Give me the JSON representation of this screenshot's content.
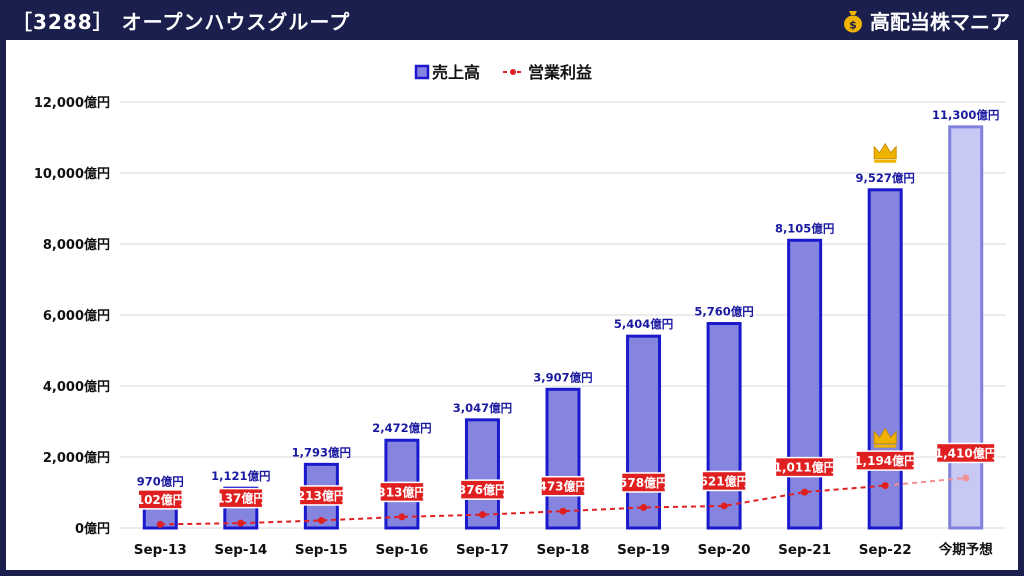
{
  "header": {
    "title": "［3288］ オープンハウスグループ",
    "brand": "高配当株マニア"
  },
  "chart_data": {
    "type": "bar",
    "categories": [
      "Sep-13",
      "Sep-14",
      "Sep-15",
      "Sep-16",
      "Sep-17",
      "Sep-18",
      "Sep-19",
      "Sep-20",
      "Sep-21",
      "Sep-22",
      "今期予想"
    ],
    "series": [
      {
        "name": "売上高",
        "kind": "bar",
        "values": [
          970,
          1121,
          1793,
          2472,
          3047,
          3907,
          5404,
          5760,
          8105,
          9527,
          11300
        ],
        "labels": [
          "970億円",
          "1,121億円",
          "1,793億円",
          "2,472億円",
          "3,047億円",
          "3,907億円",
          "5,404億円",
          "5,760億円",
          "8,105億円",
          "9,527億円",
          "11,300億円"
        ]
      },
      {
        "name": "営業利益",
        "kind": "line",
        "values": [
          102,
          137,
          213,
          313,
          376,
          473,
          578,
          621,
          1011,
          1194,
          1410
        ],
        "labels": [
          "102億円",
          "137億円",
          "213億円",
          "313億円",
          "376億円",
          "473億円",
          "578億円",
          "621億円",
          "1,011億円",
          "1,194億円",
          "1,410億円"
        ]
      }
    ],
    "ylim": [
      0,
      12000
    ],
    "yticks": [
      0,
      2000,
      4000,
      6000,
      8000,
      10000,
      12000
    ],
    "ytick_labels": [
      "0億円",
      "2,000億円",
      "4,000億円",
      "6,000億円",
      "8,000億円",
      "10,000億円",
      "12,000億円"
    ],
    "forecast_index": 10,
    "crown_index": 9,
    "grid": true,
    "legend": "top",
    "colors": {
      "bar_fill": "#8585e0",
      "bar_stroke": "#1a1acc",
      "forecast_fill": "#c8c8f4",
      "forecast_stroke": "#8080dd",
      "line": "#e02020",
      "label_bg": "#e02020",
      "label_fg": "#ffffff",
      "bar_label": "#1a1aa0",
      "crown": "#f0b400"
    }
  }
}
